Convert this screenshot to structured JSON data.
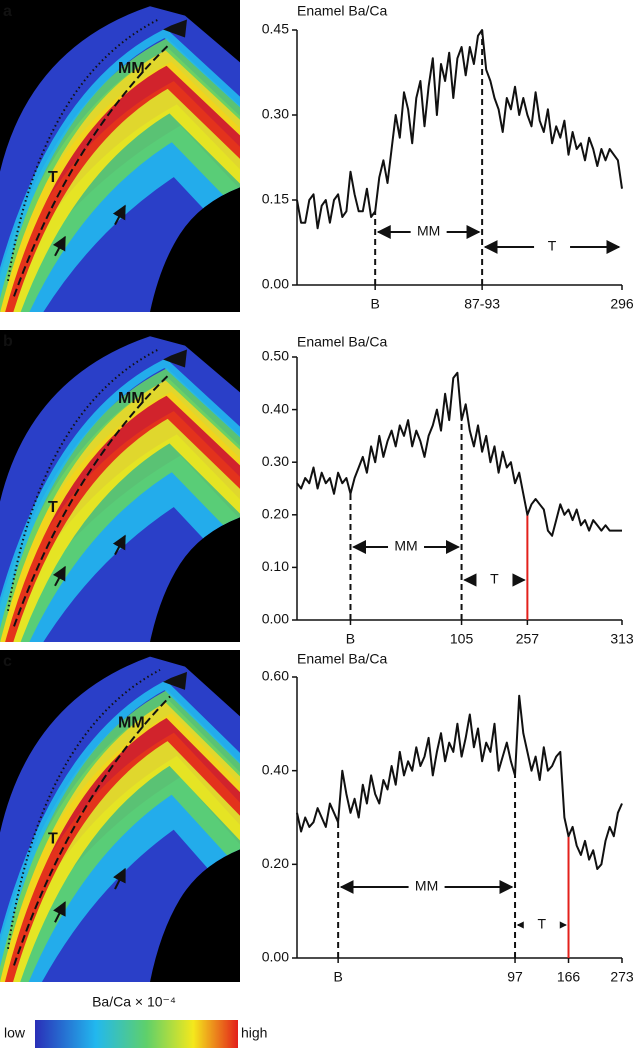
{
  "chart_data": [
    {
      "type": "line",
      "label": "a",
      "title": "Enamel Ba/Ca",
      "color": "#111111",
      "values": [
        0.15,
        0.11,
        0.11,
        0.15,
        0.16,
        0.1,
        0.14,
        0.15,
        0.11,
        0.15,
        0.16,
        0.12,
        0.13,
        0.2,
        0.16,
        0.13,
        0.13,
        0.17,
        0.12,
        0.13,
        0.19,
        0.22,
        0.18,
        0.24,
        0.3,
        0.26,
        0.34,
        0.31,
        0.25,
        0.33,
        0.36,
        0.28,
        0.35,
        0.4,
        0.3,
        0.39,
        0.36,
        0.41,
        0.33,
        0.4,
        0.42,
        0.37,
        0.42,
        0.39,
        0.44,
        0.45,
        0.38,
        0.36,
        0.33,
        0.31,
        0.27,
        0.33,
        0.31,
        0.35,
        0.3,
        0.33,
        0.3,
        0.28,
        0.34,
        0.29,
        0.27,
        0.31,
        0.25,
        0.28,
        0.26,
        0.29,
        0.23,
        0.27,
        0.24,
        0.25,
        0.22,
        0.26,
        0.24,
        0.21,
        0.24,
        0.22,
        0.24,
        0.23,
        0.22,
        0.17
      ],
      "ylim": [
        0,
        0.45
      ],
      "yticks": [
        {
          "value": 0,
          "label": "0.00"
        },
        {
          "value": 0.15,
          "label": "0.15"
        },
        {
          "value": 0.3,
          "label": "0.30"
        },
        {
          "value": 0.45,
          "label": "0.45"
        }
      ],
      "xlim": [
        0,
        79
      ],
      "xticks": [
        {
          "value": 19,
          "label": "B"
        },
        {
          "value": 45,
          "label": "87-93"
        },
        {
          "value": 79,
          "label": "296"
        }
      ],
      "annotations": [
        "MM",
        "T"
      ],
      "image_labels": [
        "MM",
        "T"
      ]
    },
    {
      "type": "line",
      "label": "b",
      "title": "Enamel Ba/Ca",
      "color": "#111111",
      "marker_color": "#e3201b",
      "values": [
        0.26,
        0.25,
        0.27,
        0.26,
        0.29,
        0.25,
        0.28,
        0.26,
        0.27,
        0.24,
        0.28,
        0.26,
        0.27,
        0.24,
        0.27,
        0.29,
        0.31,
        0.28,
        0.33,
        0.3,
        0.35,
        0.31,
        0.34,
        0.36,
        0.33,
        0.37,
        0.35,
        0.38,
        0.33,
        0.36,
        0.34,
        0.31,
        0.35,
        0.37,
        0.4,
        0.36,
        0.43,
        0.38,
        0.46,
        0.47,
        0.38,
        0.41,
        0.36,
        0.33,
        0.37,
        0.32,
        0.35,
        0.3,
        0.33,
        0.28,
        0.32,
        0.29,
        0.3,
        0.26,
        0.28,
        0.24,
        0.2,
        0.22,
        0.23,
        0.22,
        0.21,
        0.17,
        0.16,
        0.19,
        0.22,
        0.2,
        0.21,
        0.19,
        0.21,
        0.18,
        0.19,
        0.17,
        0.19,
        0.18,
        0.17,
        0.18,
        0.17,
        0.17,
        0.17,
        0.17
      ],
      "ylim": [
        0,
        0.5
      ],
      "yticks": [
        {
          "value": 0,
          "label": "0.00"
        },
        {
          "value": 0.1,
          "label": "0.10"
        },
        {
          "value": 0.2,
          "label": "0.20"
        },
        {
          "value": 0.3,
          "label": "0.30"
        },
        {
          "value": 0.4,
          "label": "0.40"
        },
        {
          "value": 0.5,
          "label": "0.50"
        }
      ],
      "xlim": [
        0,
        79
      ],
      "xticks": [
        {
          "value": 13,
          "label": "B"
        },
        {
          "value": 40,
          "label": "105"
        },
        {
          "value": 56,
          "label": "257"
        },
        {
          "value": 79,
          "label": "313"
        }
      ],
      "annotations": [
        "MM",
        "T"
      ],
      "image_labels": [
        "MM",
        "T"
      ]
    },
    {
      "type": "line",
      "label": "c",
      "title": "Enamel Ba/Ca",
      "color": "#111111",
      "marker_color": "#e3201b",
      "values": [
        0.31,
        0.27,
        0.3,
        0.28,
        0.29,
        0.32,
        0.3,
        0.28,
        0.33,
        0.31,
        0.29,
        0.4,
        0.35,
        0.31,
        0.34,
        0.3,
        0.37,
        0.33,
        0.39,
        0.35,
        0.33,
        0.38,
        0.36,
        0.41,
        0.37,
        0.44,
        0.39,
        0.42,
        0.4,
        0.45,
        0.41,
        0.43,
        0.47,
        0.39,
        0.44,
        0.48,
        0.42,
        0.46,
        0.44,
        0.5,
        0.43,
        0.47,
        0.52,
        0.45,
        0.49,
        0.42,
        0.46,
        0.44,
        0.5,
        0.4,
        0.43,
        0.46,
        0.42,
        0.39,
        0.56,
        0.48,
        0.44,
        0.4,
        0.43,
        0.38,
        0.45,
        0.4,
        0.41,
        0.43,
        0.44,
        0.3,
        0.26,
        0.28,
        0.24,
        0.22,
        0.25,
        0.21,
        0.23,
        0.19,
        0.2,
        0.25,
        0.28,
        0.26,
        0.31,
        0.33
      ],
      "ylim": [
        0,
        0.6
      ],
      "yticks": [
        {
          "value": 0,
          "label": "0.00"
        },
        {
          "value": 0.2,
          "label": "0.20"
        },
        {
          "value": 0.4,
          "label": "0.40"
        },
        {
          "value": 0.6,
          "label": "0.60"
        }
      ],
      "xlim": [
        0,
        79
      ],
      "xticks": [
        {
          "value": 10,
          "label": "B"
        },
        {
          "value": 53,
          "label": "97"
        },
        {
          "value": 66,
          "label": "166"
        },
        {
          "value": 79,
          "label": "273"
        }
      ],
      "annotations": [
        "MM",
        "T"
      ],
      "image_labels": [
        "MM",
        "T"
      ]
    }
  ],
  "colorbar": {
    "title": "Ba/Ca × 10⁻⁴",
    "low": "low",
    "high": "high"
  }
}
